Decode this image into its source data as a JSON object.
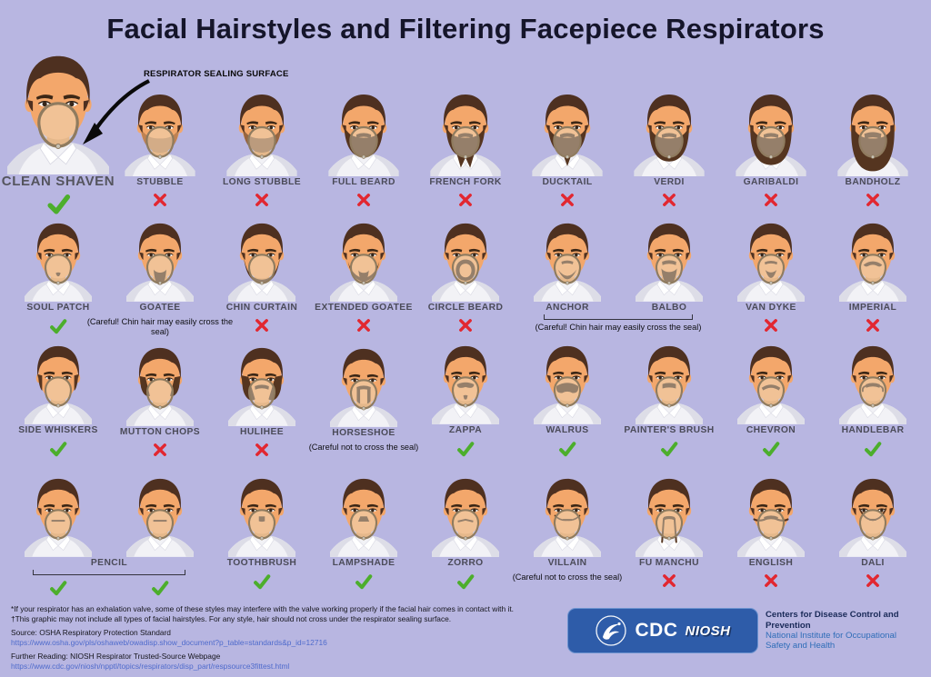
{
  "title": "Facial Hairstyles and Filtering Facepiece Respirators",
  "annotation": "RESPIRATOR SEALING SURFACE",
  "colors": {
    "background": "#b8b6e1",
    "title": "#15152a",
    "label": "#4b4b59",
    "check": "#4cae2c",
    "cross": "#e22730",
    "link": "#4f6bcc",
    "note": "#0e0e12",
    "logo_box": "#2e5ca9",
    "skin": "#f3a76b",
    "hair": "#4e3020",
    "beard": "#553520",
    "mask_outline": "#8f7b5f"
  },
  "rows": [
    {
      "items": [
        {
          "label": "CLEAN SHAVEN",
          "mark": "check",
          "beard": "clean-shaven",
          "featured": true
        },
        {
          "label": "STUBBLE",
          "mark": "x",
          "beard": "stubble"
        },
        {
          "label": "LONG STUBBLE",
          "mark": "x",
          "beard": "long-stubble"
        },
        {
          "label": "FULL BEARD",
          "mark": "x",
          "beard": "full-beard"
        },
        {
          "label": "FRENCH FORK",
          "mark": "x",
          "beard": "french-fork"
        },
        {
          "label": "DUCKTAIL",
          "mark": "x",
          "beard": "ducktail"
        },
        {
          "label": "VERDI",
          "mark": "x",
          "beard": "verdi"
        },
        {
          "label": "GARIBALDI",
          "mark": "x",
          "beard": "garibaldi"
        },
        {
          "label": "BANDHOLZ",
          "mark": "x",
          "beard": "bandholz"
        }
      ]
    },
    {
      "items": [
        {
          "label": "SOUL PATCH",
          "mark": "check",
          "beard": "soul-patch"
        },
        {
          "label": "GOATEE",
          "mark": null,
          "note": "(Careful! Chin hair may easily cross the seal)",
          "beard": "goatee"
        },
        {
          "label": "CHIN CURTAIN",
          "mark": "x",
          "beard": "chin-curtain"
        },
        {
          "label": "EXTENDED GOATEE",
          "mark": "x",
          "beard": "extended-goatee"
        },
        {
          "label": "CIRCLE BEARD",
          "mark": "x",
          "beard": "circle-beard"
        },
        {
          "label": "ANCHOR",
          "mark": null,
          "beard": "anchor",
          "group": "anchor-balbo"
        },
        {
          "label": "BALBO",
          "mark": null,
          "beard": "balbo",
          "group": "anchor-balbo"
        },
        {
          "label": "VAN DYKE",
          "mark": "x",
          "beard": "van-dyke"
        },
        {
          "label": "IMPERIAL",
          "mark": "x",
          "beard": "imperial"
        }
      ]
    },
    {
      "items": [
        {
          "label": "SIDE WHISKERS",
          "mark": "check",
          "beard": "side-whiskers"
        },
        {
          "label": "MUTTON CHOPS",
          "mark": "x",
          "beard": "mutton-chops"
        },
        {
          "label": "HULIHEE",
          "mark": "x",
          "beard": "hulihee"
        },
        {
          "label": "HORSESHOE",
          "mark": null,
          "note": "(Careful not to cross the seal)",
          "beard": "horseshoe"
        },
        {
          "label": "ZAPPA",
          "mark": "check",
          "beard": "zappa"
        },
        {
          "label": "WALRUS",
          "mark": "check",
          "beard": "walrus"
        },
        {
          "label": "PAINTER'S BRUSH",
          "mark": "check",
          "beard": "painters-brush"
        },
        {
          "label": "CHEVRON",
          "mark": "check",
          "beard": "chevron"
        },
        {
          "label": "HANDLEBAR",
          "mark": "check",
          "beard": "handlebar"
        }
      ]
    },
    {
      "items": [
        {
          "label": null,
          "mark": "check",
          "beard": "pencil",
          "group": "pencil"
        },
        {
          "label": null,
          "mark": "check",
          "beard": "pencil",
          "group": "pencil"
        },
        {
          "label": "TOOTHBRUSH",
          "mark": "check",
          "beard": "toothbrush"
        },
        {
          "label": "LAMPSHADE",
          "mark": "check",
          "beard": "lampshade"
        },
        {
          "label": "ZORRO",
          "mark": "check",
          "beard": "zorro"
        },
        {
          "label": "VILLAIN",
          "mark": null,
          "note": "(Careful not to cross the seal)",
          "beard": "villain"
        },
        {
          "label": "FU MANCHU",
          "mark": "x",
          "beard": "fu-manchu"
        },
        {
          "label": "ENGLISH",
          "mark": "x",
          "beard": "english"
        },
        {
          "label": "DALI",
          "mark": "x",
          "beard": "dali"
        }
      ]
    }
  ],
  "groups": {
    "anchor_balbo": {
      "note": "(Careful! Chin hair may easily cross the seal)"
    },
    "pencil": {
      "label": "PENCIL"
    }
  },
  "footer": {
    "note1": "*If your respirator has an exhalation valve, some of these styles may interfere with the valve working properly if the facial hair comes in contact with it.",
    "note2": "†This graphic may not include all types of facial hairstyles. For any style, hair should not cross under the respirator sealing surface.",
    "source_label": "Source: OSHA Respiratory Protection Standard",
    "source_url": "https://www.osha.gov/pls/oshaweb/owadisp.show_document?p_table=standards&p_id=12716",
    "reading_label": "Further Reading: NIOSH Respirator Trusted-Source Webpage",
    "reading_url": "https://www.cdc.gov/niosh/npptl/topics/respirators/disp_part/respsource3fittest.html"
  },
  "logo": {
    "cdc": "CDC",
    "niosh": "NIOSH",
    "org_bold": "Centers for Disease Control and Prevention",
    "org_sub": "National Institute for Occupational Safety and Health"
  }
}
